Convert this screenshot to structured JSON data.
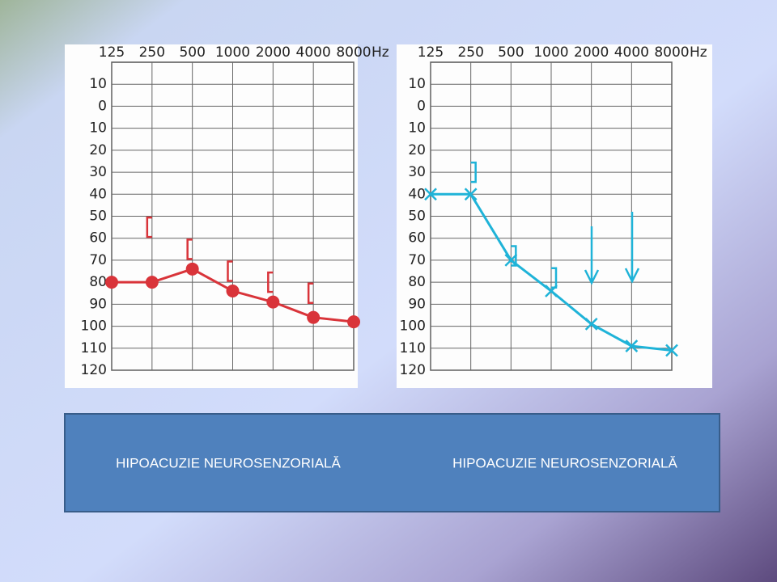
{
  "chart_data": [
    {
      "type": "line",
      "x_label": "Hz",
      "inverted": true,
      "grid": true,
      "categories": [
        "125",
        "250",
        "500",
        "1000",
        "2000",
        "4000",
        "8000"
      ],
      "ylim": [
        -20,
        120
      ],
      "yticks": [
        {
          "value": -10,
          "label": "10"
        },
        0,
        10,
        20,
        30,
        40,
        50,
        60,
        70,
        80,
        90,
        100,
        110,
        120
      ],
      "series": [
        {
          "color": "#d9343a",
          "marker": "circle",
          "line": true,
          "values": [
            80,
            80,
            74,
            84,
            89,
            96,
            98
          ]
        },
        {
          "color": "#d9343a",
          "marker": "bracket-left",
          "line": false,
          "values": [
            null,
            55,
            65,
            75,
            80,
            85,
            null
          ]
        }
      ]
    },
    {
      "type": "line",
      "x_label": "Hz",
      "inverted": true,
      "grid": true,
      "categories": [
        "125",
        "250",
        "500",
        "1000",
        "2000",
        "4000",
        "8000"
      ],
      "ylim": [
        -20,
        120
      ],
      "yticks": [
        {
          "value": -10,
          "label": "10"
        },
        0,
        10,
        20,
        30,
        40,
        50,
        60,
        70,
        80,
        90,
        100,
        110,
        120
      ],
      "series": [
        {
          "color": "#1fb3d8",
          "marker": "cross",
          "line": true,
          "values": [
            40,
            40,
            70,
            84,
            99,
            109,
            111
          ]
        },
        {
          "color": "#1fb3d8",
          "marker": "bracket-right",
          "line": false,
          "values": [
            null,
            30,
            68,
            78,
            null,
            null,
            null
          ]
        }
      ]
    }
  ],
  "captions": [
    "HIPOACUZIE NEUROSENZORIALĂ",
    "HIPOACUZIE NEUROSENZORIALĂ"
  ]
}
